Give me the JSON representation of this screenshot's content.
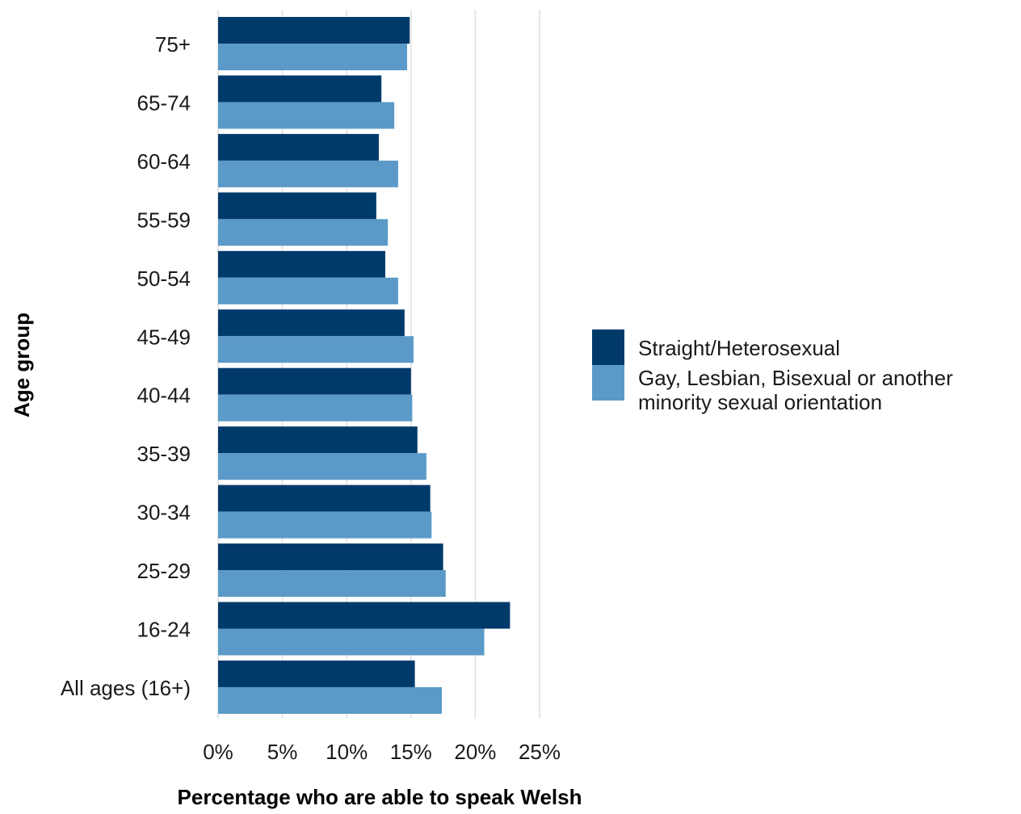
{
  "chart_data": {
    "type": "bar",
    "orientation": "horizontal",
    "xlabel": "Percentage who are able to speak Welsh",
    "ylabel": "Age group",
    "xlim": [
      0,
      25
    ],
    "x_ticks": [
      "0%",
      "5%",
      "10%",
      "15%",
      "20%",
      "25%"
    ],
    "grid": "vertical major gridlines",
    "legend_position": "right",
    "categories": [
      "75+",
      "65-74",
      "60-64",
      "55-59",
      "50-54",
      "45-49",
      "40-44",
      "35-39",
      "30-34",
      "25-29",
      "16-24",
      "All ages (16+)"
    ],
    "series": [
      {
        "name": "Straight/Heterosexual",
        "color": "#003a6b",
        "values": [
          14.9,
          12.7,
          12.5,
          12.3,
          13.0,
          14.5,
          15.0,
          15.5,
          16.5,
          17.5,
          22.7,
          15.3
        ]
      },
      {
        "name": "Gay, Lesbian, Bisexual or another minority sexual orientation",
        "legend_lines": [
          "Gay, Lesbian, Bisexual or another",
          "minority sexual orientation"
        ],
        "color": "#5b9ac8",
        "values": [
          14.7,
          13.7,
          14.0,
          13.2,
          14.0,
          15.2,
          15.1,
          16.2,
          16.6,
          17.7,
          20.7,
          17.4
        ]
      }
    ]
  }
}
